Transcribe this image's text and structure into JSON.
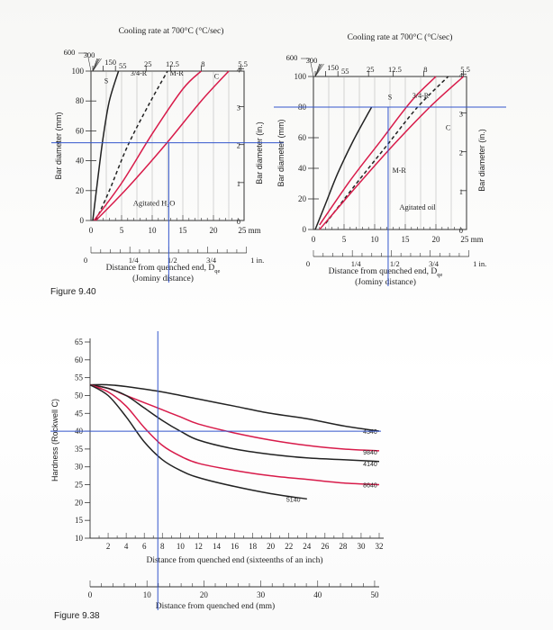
{
  "figure_9_40_label": "Figure 9.40",
  "figure_9_38_label": "Figure 9.38",
  "chart_data": [
    {
      "type": "line",
      "id": "water",
      "title": "Cooling rate at 700°C (°C/sec)",
      "top_rates": [
        "300",
        "150",
        "55",
        "25",
        "12.5",
        "8",
        "5.5"
      ],
      "xlabel": "Distance from quenched end, D",
      "xlabel_sub": "qe",
      "xlabel2": "(Jominy distance)",
      "ylabel_left": "Bar diameter (mm)",
      "ylabel_right": "Bar diameter (in.)",
      "x_mm_ticks": [
        "0",
        "5",
        "10",
        "15",
        "20",
        "25 mm"
      ],
      "x_in_ticks": [
        "0",
        "1/4",
        "1/2",
        "3/4",
        "1 in."
      ],
      "y_mm_ticks": [
        "0",
        "20",
        "40",
        "60",
        "80",
        "100"
      ],
      "y_in_ticks": [
        "0",
        "1",
        "2",
        "3",
        "4"
      ],
      "xlim_mm": [
        0,
        25
      ],
      "ylim_mm": [
        0,
        100
      ],
      "medium": "Agitated H₂O",
      "curve_labels": [
        "S",
        "3/4-R",
        "M-R",
        "C"
      ],
      "guide_line_mm": 52,
      "series": [
        {
          "name": "S",
          "color": "#222222",
          "style": "solid",
          "x": [
            0.3,
            1,
            2,
            3,
            4.5
          ],
          "y": [
            0,
            24,
            56,
            80,
            100
          ]
        },
        {
          "name": "3/4-R",
          "color": "#222222",
          "style": "dashed",
          "x": [
            0.8,
            3,
            6,
            9.5,
            12.5
          ],
          "y": [
            0,
            20,
            50,
            78,
            100
          ]
        },
        {
          "name": "M-R",
          "color": "#d81b4a",
          "style": "solid",
          "x": [
            0.5,
            5,
            10,
            15,
            18
          ],
          "y": [
            0,
            25,
            58,
            88,
            100
          ]
        },
        {
          "name": "C",
          "color": "#d81b4a",
          "style": "solid",
          "x": [
            0.8,
            6,
            12,
            18,
            22.5
          ],
          "y": [
            0,
            22,
            50,
            80,
            100
          ]
        }
      ]
    },
    {
      "type": "line",
      "id": "oil",
      "title": "Cooling rate at 700°C (°C/sec)",
      "top_rates": [
        "300",
        "150",
        "55",
        "25",
        "12.5",
        "8",
        "5.5"
      ],
      "xlabel": "Distance from quenched end, D",
      "xlabel_sub": "qe",
      "xlabel2": "(Jominy distance)",
      "ylabel_left": "Bar diameter (mm)",
      "ylabel_right": "Bar diameter (in.)",
      "x_mm_ticks": [
        "0",
        "5",
        "10",
        "15",
        "20",
        "25 mm"
      ],
      "x_in_ticks": [
        "0",
        "1/4",
        "1/2",
        "3/4",
        "1 in."
      ],
      "y_mm_ticks": [
        "0",
        "20",
        "40",
        "60",
        "80",
        "100"
      ],
      "y_in_ticks": [
        "0",
        "1",
        "2",
        "3",
        "4"
      ],
      "xlim_mm": [
        0,
        25
      ],
      "ylim_mm": [
        0,
        100
      ],
      "medium": "Agitated oil",
      "curve_labels": [
        "S",
        "3/4-R",
        "C",
        "M-R"
      ],
      "guide_line_mm": 80,
      "series": [
        {
          "name": "S",
          "color": "#222222",
          "style": "solid",
          "x": [
            0.3,
            2,
            4,
            6.5,
            9.5
          ],
          "y": [
            0,
            17,
            37,
            58,
            80
          ]
        },
        {
          "name": "3/4-R",
          "color": "#222222",
          "style": "dashed",
          "x": [
            2,
            7,
            12,
            17,
            22
          ],
          "y": [
            4,
            30,
            55,
            80,
            100
          ]
        },
        {
          "name": "M-R",
          "color": "#d81b4a",
          "style": "solid",
          "x": [
            1,
            6,
            11,
            16,
            20
          ],
          "y": [
            3,
            32,
            58,
            84,
            100
          ]
        },
        {
          "name": "C",
          "color": "#d81b4a",
          "style": "solid",
          "x": [
            1,
            7,
            13,
            19,
            24.5
          ],
          "y": [
            0,
            28,
            55,
            80,
            100
          ]
        }
      ]
    },
    {
      "type": "line",
      "id": "hardness",
      "xlabel": "Distance from quenched end (sixteenths of an inch)",
      "xlabel_mm": "Distance from quenched end (mm)",
      "ylabel": "Hardness (Rockwell C)",
      "x_ticks": [
        "2",
        "4",
        "6",
        "8",
        "10",
        "12",
        "14",
        "16",
        "18",
        "20",
        "22",
        "24",
        "26",
        "28",
        "30",
        "32"
      ],
      "x_mm_ticks": [
        "0",
        "10",
        "20",
        "30",
        "40",
        "50"
      ],
      "y_ticks": [
        "10",
        "15",
        "20",
        "25",
        "30",
        "35",
        "40",
        "45",
        "50",
        "55",
        "60",
        "65"
      ],
      "xlim": [
        0,
        32
      ],
      "ylim": [
        10,
        65
      ],
      "guide_x": 7.5,
      "guide_y": 40,
      "series": [
        {
          "name": "4340",
          "color": "#222222",
          "x": [
            0,
            2,
            4,
            8,
            12,
            16,
            20,
            24,
            28,
            32
          ],
          "y": [
            53,
            53,
            52.5,
            51,
            49,
            47,
            45,
            43.5,
            41.5,
            40
          ]
        },
        {
          "name": "9840",
          "color": "#d81b4a",
          "x": [
            0,
            2,
            4,
            6,
            8,
            10,
            12,
            16,
            20,
            24,
            28,
            32
          ],
          "y": [
            53,
            52,
            50,
            48,
            46,
            44,
            42,
            39.5,
            37.5,
            36,
            35,
            34.5
          ]
        },
        {
          "name": "4140",
          "color": "#222222",
          "x": [
            0,
            2,
            4,
            6,
            8,
            10,
            12,
            16,
            20,
            24,
            28,
            32
          ],
          "y": [
            53,
            52,
            50,
            46.5,
            43,
            40,
            37.5,
            35,
            33.5,
            32.5,
            32,
            31.5
          ]
        },
        {
          "name": "8640",
          "color": "#d81b4a",
          "x": [
            0,
            2,
            4,
            6,
            8,
            10,
            12,
            16,
            20,
            24,
            28,
            32
          ],
          "y": [
            53,
            51,
            47,
            41,
            36,
            33,
            31,
            29,
            27.5,
            26.5,
            25.5,
            25
          ]
        },
        {
          "name": "5140",
          "color": "#222222",
          "x": [
            0,
            2,
            4,
            6,
            8,
            10,
            12,
            16,
            20,
            24
          ],
          "y": [
            53,
            50,
            44,
            37,
            32,
            29,
            27,
            24.5,
            22.5,
            21
          ]
        }
      ]
    }
  ]
}
